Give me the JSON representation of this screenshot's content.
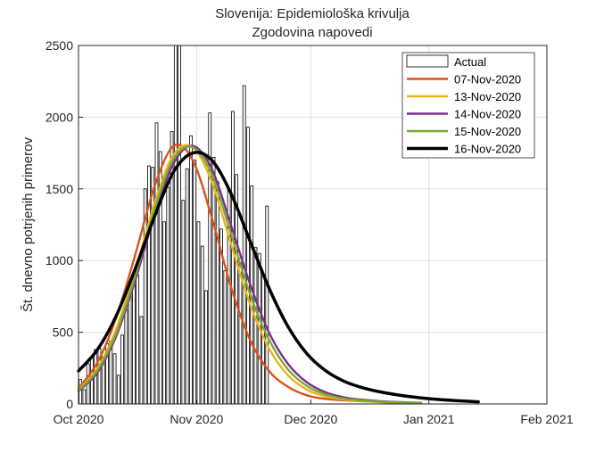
{
  "chart_data": {
    "type": "bar",
    "title": "Slovenija: Epidemiološka krivulja",
    "subtitle": "Zgodovina napovedi",
    "xlabel": "",
    "ylabel": "Št. dnevno potrjenih primerov",
    "ylim": [
      0,
      2500
    ],
    "xlim": [
      "2020-10-01",
      "2021-02-01"
    ],
    "xticks": [
      "Oct 2020",
      "Nov 2020",
      "Dec 2020",
      "Jan 2021",
      "Feb 2021"
    ],
    "yticks": [
      "0",
      "500",
      "1000",
      "1500",
      "2000",
      "2500"
    ],
    "grid": true,
    "legend_position": "top-right",
    "bars": {
      "name": "Actual",
      "start_date": "2020-10-01",
      "values": [
        170,
        100,
        280,
        330,
        380,
        390,
        330,
        420,
        440,
        350,
        200,
        480,
        660,
        790,
        840,
        900,
        610,
        1500,
        1660,
        1650,
        1960,
        1760,
        1270,
        1510,
        1900,
        2700,
        2500,
        1420,
        1640,
        1870,
        1700,
        1270,
        1100,
        790,
        2030,
        1720,
        1550,
        1220,
        930,
        1490,
        2040,
        1600,
        1020,
        2220,
        1930,
        1520,
        1090,
        1050,
        900,
        1380
      ]
    },
    "series": [
      {
        "name": "07-Nov-2020",
        "color": "#d95319",
        "x": [
          "2020-10-01",
          "2020-10-06",
          "2020-10-11",
          "2020-10-16",
          "2020-10-21",
          "2020-10-26",
          "2020-10-31",
          "2020-11-05",
          "2020-11-10",
          "2020-11-15",
          "2020-11-20",
          "2020-11-25",
          "2020-11-30",
          "2020-12-05",
          "2020-12-10",
          "2020-12-15",
          "2020-12-20",
          "2020-12-25",
          "2020-12-30"
        ],
        "values": [
          110,
          290,
          610,
          1050,
          1520,
          1800,
          1700,
          1300,
          820,
          450,
          230,
          120,
          60,
          35,
          25,
          18,
          12,
          8,
          5
        ]
      },
      {
        "name": "13-Nov-2020",
        "color": "#edb120",
        "x": [
          "2020-10-01",
          "2020-10-06",
          "2020-10-11",
          "2020-10-16",
          "2020-10-21",
          "2020-10-26",
          "2020-10-31",
          "2020-11-05",
          "2020-11-10",
          "2020-11-15",
          "2020-11-20",
          "2020-11-25",
          "2020-11-30",
          "2020-12-05",
          "2020-12-10",
          "2020-12-15",
          "2020-12-20",
          "2020-12-25",
          "2020-12-30"
        ],
        "values": [
          100,
          250,
          530,
          940,
          1400,
          1740,
          1790,
          1550,
          1120,
          700,
          390,
          200,
          100,
          52,
          30,
          20,
          14,
          9,
          6
        ]
      },
      {
        "name": "14-Nov-2020",
        "color": "#7e2f8e",
        "x": [
          "2020-10-01",
          "2020-10-06",
          "2020-10-11",
          "2020-10-16",
          "2020-10-21",
          "2020-10-26",
          "2020-10-31",
          "2020-11-05",
          "2020-11-10",
          "2020-11-15",
          "2020-11-20",
          "2020-11-25",
          "2020-11-30",
          "2020-12-05",
          "2020-12-10",
          "2020-12-15",
          "2020-12-20",
          "2020-12-25",
          "2020-12-30"
        ],
        "values": [
          90,
          220,
          480,
          870,
          1320,
          1680,
          1800,
          1640,
          1250,
          840,
          500,
          280,
          150,
          80,
          45,
          28,
          18,
          12,
          8
        ]
      },
      {
        "name": "15-Nov-2020",
        "color": "#77ac30",
        "x": [
          "2020-10-01",
          "2020-10-06",
          "2020-10-11",
          "2020-10-16",
          "2020-10-21",
          "2020-10-26",
          "2020-10-31",
          "2020-11-05",
          "2020-11-10",
          "2020-11-15",
          "2020-11-20",
          "2020-11-25",
          "2020-11-30",
          "2020-12-05",
          "2020-12-10",
          "2020-12-15",
          "2020-12-20",
          "2020-12-25",
          "2020-12-30"
        ],
        "values": [
          95,
          235,
          500,
          900,
          1360,
          1710,
          1790,
          1600,
          1190,
          770,
          450,
          240,
          125,
          65,
          36,
          23,
          15,
          10,
          7
        ]
      },
      {
        "name": "16-Nov-2020",
        "color": "#000000",
        "x": [
          "2020-10-01",
          "2020-10-06",
          "2020-10-11",
          "2020-10-16",
          "2020-10-21",
          "2020-10-26",
          "2020-10-31",
          "2020-11-05",
          "2020-11-10",
          "2020-11-15",
          "2020-11-20",
          "2020-11-25",
          "2020-11-30",
          "2020-12-05",
          "2020-12-10",
          "2020-12-15",
          "2020-12-20",
          "2020-12-25",
          "2020-12-30",
          "2021-01-04",
          "2021-01-09",
          "2021-01-14"
        ],
        "values": [
          230,
          380,
          620,
          950,
          1310,
          1620,
          1750,
          1700,
          1470,
          1140,
          810,
          540,
          350,
          230,
          155,
          110,
          80,
          58,
          42,
          30,
          22,
          15
        ]
      }
    ]
  }
}
